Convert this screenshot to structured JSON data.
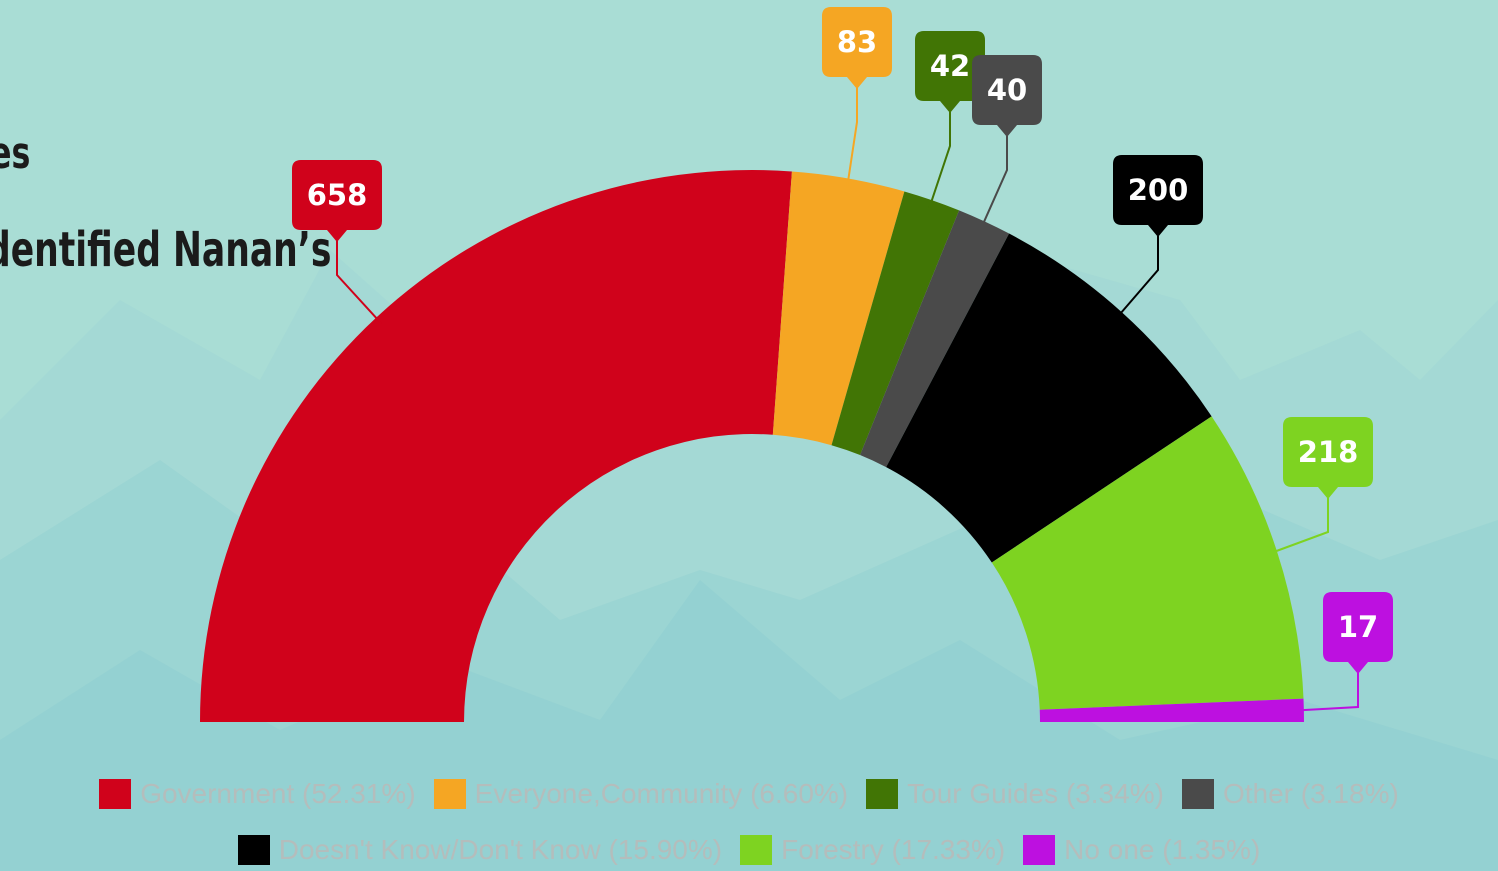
{
  "title": {
    "line1": "es",
    "line2": "dentified Nanan’s"
  },
  "chart_data": {
    "type": "pie",
    "variant": "semi-donut",
    "categories": [
      "Government",
      "Everyone,Community",
      "Tour Guides",
      "Other",
      "Doesn't Know/Don't Know",
      "Forestry",
      "No one"
    ],
    "values": [
      658,
      83,
      42,
      40,
      200,
      218,
      17
    ],
    "data_labels": [
      "658",
      "83",
      "42",
      "40",
      "200",
      "218",
      "17"
    ],
    "legend": [
      "Government (52.31%)",
      "Everyone,Community (6.60%)",
      "Tour Guides (3.34%)",
      "Other (3.18%)",
      "Doesn't Know/Don't Know (15.90%)",
      "Forestry (17.33%)",
      "No one (1.35%)"
    ],
    "colors": [
      "#d0021b",
      "#f5a623",
      "#417505",
      "#4a4a4a",
      "#000000",
      "#7ed321",
      "#bd10e0"
    ],
    "label_text_colors": [
      "#ffffff",
      "#ffffff",
      "#ffffff",
      "#ffffff",
      "#ffffff",
      "#ffffff",
      "#ffffff"
    ],
    "legend_placement": "bottom",
    "legend_text_color": "#b4bdbc"
  }
}
